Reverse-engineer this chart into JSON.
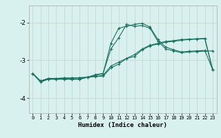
{
  "xlabel": "Humidex (Indice chaleur)",
  "background_color": "#d8f0ee",
  "grid_color": "#c8d8d0",
  "line_color": "#1a7060",
  "x_ticks": [
    0,
    1,
    2,
    3,
    4,
    5,
    6,
    7,
    8,
    9,
    10,
    11,
    12,
    13,
    14,
    15,
    16,
    17,
    18,
    19,
    20,
    21,
    22,
    23
  ],
  "y_ticks": [
    -4,
    -3,
    -2
  ],
  "ylim": [
    -4.4,
    -1.55
  ],
  "xlim": [
    -0.5,
    23.5
  ],
  "series1_y": [
    -3.35,
    -3.58,
    -3.5,
    -3.5,
    -3.5,
    -3.5,
    -3.5,
    -3.45,
    -3.38,
    -3.35,
    -2.55,
    -2.15,
    -2.1,
    -2.05,
    -2.02,
    -2.12,
    -2.45,
    -2.65,
    -2.72,
    -2.78,
    -2.76,
    -2.75,
    -2.74,
    -3.25
  ],
  "series2_y": [
    -3.35,
    -3.55,
    -3.48,
    -3.48,
    -3.47,
    -3.47,
    -3.46,
    -3.45,
    -3.43,
    -3.4,
    -3.15,
    -3.05,
    -2.95,
    -2.85,
    -2.7,
    -2.6,
    -2.55,
    -2.5,
    -2.48,
    -2.45,
    -2.44,
    -2.43,
    -2.42,
    -3.25
  ],
  "series3_y": [
    -3.35,
    -3.55,
    -3.48,
    -3.48,
    -3.47,
    -3.47,
    -3.46,
    -3.45,
    -3.43,
    -3.42,
    -3.2,
    -3.1,
    -2.95,
    -2.9,
    -2.72,
    -2.62,
    -2.57,
    -2.52,
    -2.5,
    -2.47,
    -2.45,
    -2.44,
    -2.43,
    -3.25
  ],
  "series4_y": [
    -3.35,
    -3.55,
    -3.5,
    -3.5,
    -3.5,
    -3.5,
    -3.5,
    -3.45,
    -3.4,
    -3.35,
    -2.7,
    -2.4,
    -2.05,
    -2.1,
    -2.08,
    -2.15,
    -2.5,
    -2.7,
    -2.75,
    -2.8,
    -2.78,
    -2.77,
    -2.76,
    -2.75
  ]
}
